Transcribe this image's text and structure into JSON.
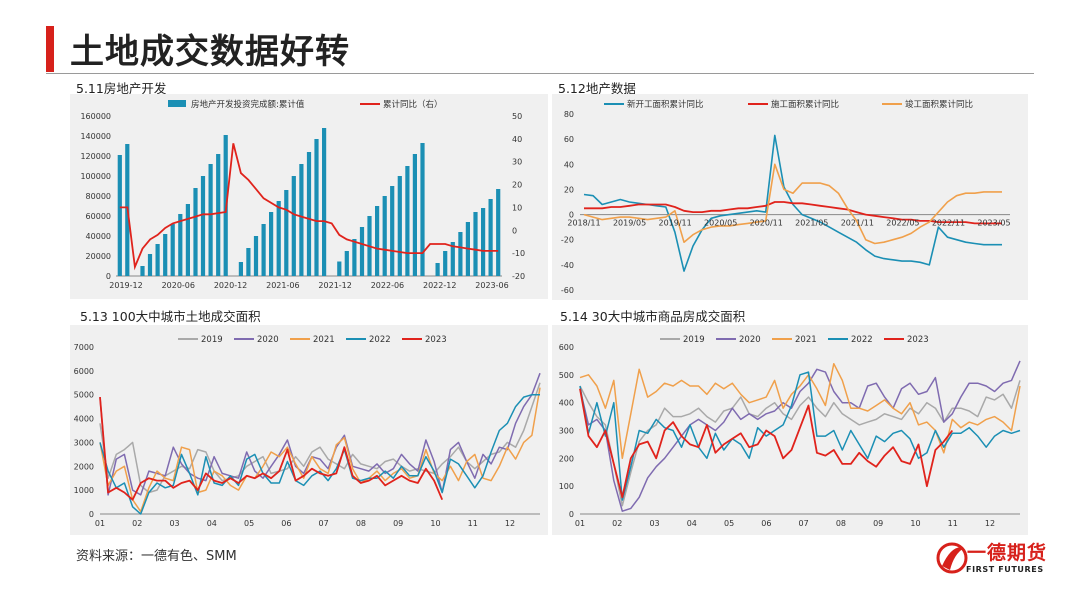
{
  "page": {
    "title": "土地成交数据好转"
  },
  "source": "资料来源：一德有色、SMM",
  "logo": {
    "text_cn": "一德期货",
    "text_en": "FIRST FUTURES"
  },
  "panels": [
    {
      "title": "5.11房地产开发"
    },
    {
      "title": "5.12地产数据"
    },
    {
      "title": "5.13 100大中城市土地成交面积"
    },
    {
      "title": "5.14 30大中城市商品房成交面积"
    }
  ],
  "colors": {
    "accent": "#d7211b",
    "bar": "#1b8fb4",
    "line_red": "#e0231c",
    "y2019": "#a9a9a9",
    "y2020": "#7f6bb0",
    "y2021": "#f0a04b",
    "y2022": "#1b8fb4",
    "y2023": "#e0231c"
  },
  "chart_data": [
    {
      "type": "bar+line",
      "series": [
        {
          "name": "房地产开发投资完成额:累计值",
          "axis": "left",
          "values": [
            121000,
            132000,
            null,
            10000,
            22000,
            32000,
            42000,
            52000,
            62000,
            72000,
            88000,
            100000,
            112000,
            122000,
            141000,
            null,
            14000,
            28000,
            40000,
            52000,
            64000,
            75000,
            86000,
            100000,
            112000,
            124000,
            137000,
            148000,
            null,
            14500,
            25000,
            37000,
            49000,
            60000,
            70000,
            80000,
            90000,
            100000,
            110000,
            122000,
            133000,
            null,
            13000,
            25000,
            34000,
            44000,
            54000,
            64000,
            68000,
            77000,
            87000
          ]
        },
        {
          "name": "累计同比（右）",
          "axis": "right",
          "values": [
            10,
            10,
            -16,
            -8,
            -4,
            -2,
            1,
            3,
            4,
            5,
            6,
            7,
            7,
            7.5,
            8,
            38,
            25,
            22,
            18,
            14,
            12,
            10,
            9,
            7,
            6,
            5,
            4,
            4,
            3,
            -2,
            -4,
            -5,
            -6,
            -7,
            -8,
            -8.5,
            -9,
            -9.5,
            -10,
            -10,
            -10,
            -6,
            -6,
            -6,
            -7,
            -7.5,
            -8,
            -8.5,
            -9,
            -9,
            -9
          ]
        }
      ],
      "x_tick_labels": [
        "2019-12",
        "2020-06",
        "2020-12",
        "2021-06",
        "2021-12",
        "2022-06",
        "2022-12",
        "2023-06"
      ],
      "ylim_left": [
        0,
        160000
      ],
      "yticks_left": [
        0,
        20000,
        40000,
        60000,
        80000,
        100000,
        120000,
        140000,
        160000
      ],
      "ylim_right": [
        -20,
        50
      ],
      "yticks_right": [
        -20,
        -10,
        0,
        10,
        20,
        30,
        40,
        50
      ],
      "legend": "top"
    },
    {
      "type": "line",
      "series": [
        {
          "name": "新开工面积累计同比",
          "values": [
            16,
            15,
            8,
            10,
            12,
            10,
            9,
            8,
            7,
            6,
            -14,
            -45,
            -25,
            -12,
            -3,
            -1,
            0,
            1,
            2,
            3,
            2,
            63,
            22,
            8,
            0,
            -3,
            -6,
            -10,
            -14,
            -18,
            -22,
            -28,
            -33,
            -35,
            -36,
            -37,
            -37,
            -38,
            -40,
            -10,
            -18,
            -20,
            -22,
            -23,
            -24,
            -24,
            -24
          ]
        },
        {
          "name": "施工面积累计同比",
          "values": [
            5,
            5,
            5,
            6,
            6,
            7,
            8,
            8,
            8,
            8,
            6,
            3,
            2,
            2,
            3,
            3,
            4,
            5,
            5,
            6,
            7,
            10,
            10,
            9,
            9,
            8,
            7,
            6,
            5,
            4,
            2,
            0,
            -1,
            -2,
            -3,
            -4,
            -4,
            -5,
            -5,
            -6,
            -6,
            -6,
            -6,
            -7,
            -7,
            -7,
            -7
          ]
        },
        {
          "name": "竣工面积累计同比",
          "values": [
            0,
            -2,
            -4,
            -3,
            -2,
            -2,
            -3,
            -4,
            -3,
            -2,
            3,
            -22,
            -16,
            -12,
            -10,
            -9,
            -9,
            -8,
            -7,
            -6,
            -5,
            40,
            20,
            17,
            25,
            25,
            25,
            23,
            17,
            5,
            -5,
            -20,
            -23,
            -22,
            -20,
            -18,
            -15,
            -10,
            -6,
            2,
            10,
            15,
            17,
            17,
            18,
            18,
            18
          ]
        }
      ],
      "x_tick_labels": [
        "2018/11",
        "2019/05",
        "2019/11",
        "2020/05",
        "2020/11",
        "2021/05",
        "2021/11",
        "2022/05",
        "2022/11",
        "2023/05"
      ],
      "ylim": [
        -60,
        80
      ],
      "yticks": [
        -60,
        -40,
        -20,
        0,
        20,
        40,
        60,
        80
      ],
      "legend": "top"
    },
    {
      "type": "line",
      "series": [
        {
          "name": "2019",
          "values": [
            3800,
            1500,
            2500,
            2700,
            3000,
            1200,
            900,
            1000,
            1600,
            1800,
            2000,
            1900,
            2700,
            2600,
            1800,
            1400,
            1500,
            1600,
            2000,
            2200,
            2400,
            1700,
            1800,
            1900,
            2400,
            2000,
            2600,
            2800,
            2300,
            2100,
            1900,
            2500,
            2100,
            2000,
            1900,
            2200,
            2300,
            2000,
            1800,
            1900,
            1800,
            1700,
            2100,
            2400,
            2800,
            2200,
            1900,
            2200,
            2500,
            2600,
            3000,
            2800,
            3500,
            4500,
            5500
          ]
        },
        {
          "name": "2020",
          "values": [
            4900,
            800,
            2300,
            2500,
            1000,
            800,
            1800,
            1700,
            1600,
            2800,
            2100,
            1700,
            1500,
            1400,
            2400,
            1700,
            1600,
            1500,
            2600,
            1800,
            1500,
            2000,
            2500,
            3100,
            2000,
            1700,
            2400,
            2300,
            1900,
            2800,
            3300,
            2000,
            1900,
            1800,
            2100,
            1700,
            1900,
            2500,
            2100,
            1800,
            3100,
            2200,
            900,
            2700,
            3000,
            2200,
            1500,
            2500,
            2100,
            2800,
            2700,
            3800,
            4500,
            5000,
            5900
          ]
        },
        {
          "name": "2021",
          "values": [
            3000,
            1200,
            1800,
            2000,
            600,
            100,
            1100,
            1800,
            1500,
            1400,
            2800,
            2700,
            900,
            1000,
            1800,
            1600,
            1200,
            1000,
            1600,
            1500,
            2000,
            2600,
            2400,
            2800,
            2100,
            1500,
            2400,
            1900,
            1700,
            2900,
            3200,
            1900,
            1300,
            1500,
            1800,
            1400,
            1700,
            1900,
            1500,
            1600,
            2700,
            1700,
            1400,
            2000,
            1400,
            2200,
            2500,
            1500,
            1400,
            2000,
            2800,
            2300,
            3000,
            3300,
            5300
          ]
        },
        {
          "name": "2022",
          "values": [
            3000,
            1800,
            1100,
            1300,
            300,
            0,
            900,
            1300,
            1100,
            1200,
            2500,
            1700,
            800,
            2400,
            1300,
            1200,
            1600,
            1200,
            2300,
            2500,
            1700,
            1300,
            1300,
            2200,
            1400,
            1200,
            1600,
            1800,
            1400,
            1900,
            2700,
            1500,
            1400,
            1500,
            1500,
            1800,
            1500,
            2000,
            1600,
            1600,
            2400,
            1800,
            900,
            2300,
            2100,
            1600,
            1100,
            1600,
            2600,
            3500,
            3800,
            4500,
            4900,
            5000,
            5000
          ]
        },
        {
          "name": "2023",
          "values": [
            4900,
            900,
            1100,
            900,
            600,
            1300,
            1500,
            1400,
            1400,
            1100,
            1300,
            1400,
            1000,
            1700,
            1400,
            1300,
            1500,
            1300,
            1600,
            1500,
            1700,
            1500,
            1800,
            2700,
            1400,
            1600,
            1900,
            1700,
            1600,
            1700,
            2800,
            1600,
            1300,
            1400,
            1600,
            1200,
            1400,
            1600,
            1400,
            1300,
            1900,
            1400,
            600
          ]
        }
      ],
      "x_tick_labels": [
        "01",
        "02",
        "03",
        "04",
        "05",
        "06",
        "07",
        "08",
        "09",
        "10",
        "11",
        "12"
      ],
      "ylim": [
        0,
        7000
      ],
      "yticks": [
        0,
        1000,
        2000,
        3000,
        4000,
        5000,
        6000,
        7000
      ],
      "legend": "top"
    },
    {
      "type": "line",
      "series": [
        {
          "name": "2019",
          "values": [
            460,
            400,
            350,
            320,
            180,
            30,
            150,
            260,
            300,
            320,
            380,
            350,
            350,
            360,
            380,
            350,
            330,
            370,
            380,
            420,
            360,
            350,
            380,
            400,
            360,
            340,
            390,
            420,
            380,
            350,
            400,
            360,
            340,
            320,
            330,
            340,
            360,
            350,
            340,
            380,
            360,
            400,
            380,
            330,
            380,
            380,
            370,
            350,
            420,
            410,
            430,
            380,
            480
          ]
        },
        {
          "name": "2020",
          "values": [
            450,
            320,
            340,
            300,
            120,
            10,
            20,
            60,
            130,
            170,
            200,
            240,
            280,
            320,
            340,
            320,
            300,
            330,
            380,
            340,
            360,
            340,
            360,
            370,
            400,
            380,
            440,
            470,
            520,
            510,
            440,
            400,
            400,
            380,
            460,
            470,
            420,
            380,
            450,
            470,
            430,
            440,
            490,
            330,
            360,
            420,
            470,
            470,
            460,
            440,
            470,
            480,
            550
          ]
        },
        {
          "name": "2021",
          "values": [
            490,
            500,
            460,
            380,
            480,
            200,
            360,
            520,
            420,
            440,
            470,
            460,
            480,
            460,
            460,
            430,
            470,
            450,
            470,
            430,
            400,
            410,
            420,
            480,
            380,
            430,
            460,
            500,
            450,
            390,
            540,
            480,
            380,
            380,
            370,
            390,
            410,
            380,
            360,
            400,
            320,
            330,
            300,
            220,
            340,
            310,
            330,
            320,
            340,
            350,
            330,
            300,
            460
          ]
        },
        {
          "name": "2022",
          "values": [
            460,
            290,
            400,
            280,
            400,
            50,
            170,
            300,
            290,
            340,
            310,
            300,
            240,
            320,
            240,
            200,
            290,
            230,
            270,
            250,
            200,
            310,
            280,
            300,
            320,
            390,
            500,
            510,
            280,
            280,
            300,
            230,
            300,
            250,
            200,
            280,
            260,
            290,
            300,
            270,
            200,
            220,
            300,
            240,
            290,
            290,
            310,
            280,
            240,
            280,
            300,
            290,
            300
          ]
        },
        {
          "name": "2023",
          "values": [
            450,
            280,
            240,
            300,
            180,
            60,
            200,
            250,
            260,
            200,
            300,
            330,
            280,
            250,
            240,
            320,
            220,
            250,
            270,
            290,
            240,
            250,
            300,
            280,
            200,
            230,
            310,
            390,
            220,
            210,
            230,
            180,
            180,
            220,
            190,
            170,
            210,
            240,
            190,
            180,
            250,
            100,
            230,
            260,
            300
          ]
        }
      ],
      "x_tick_labels": [
        "01",
        "02",
        "03",
        "04",
        "05",
        "06",
        "07",
        "08",
        "09",
        "10",
        "11",
        "12"
      ],
      "ylim": [
        0,
        600
      ],
      "yticks": [
        0,
        100,
        200,
        300,
        400,
        500,
        600
      ],
      "legend": "top"
    }
  ]
}
